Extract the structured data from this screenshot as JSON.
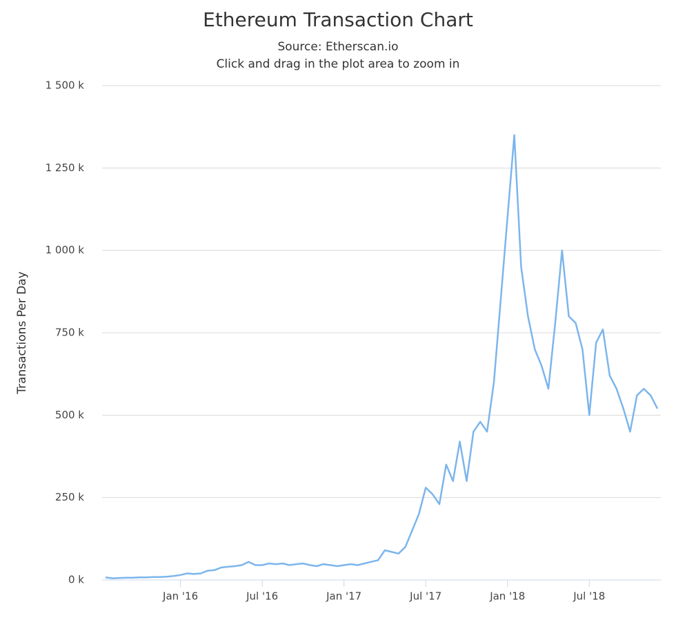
{
  "chart_data": {
    "type": "line",
    "title": "Ethereum Transaction Chart",
    "subtitle": "Source: Etherscan.io",
    "annotation": "Click and drag in the plot area to zoom in",
    "y_label": "Transactions Per Day",
    "categories": [
      null,
      null,
      null,
      null,
      null,
      null,
      null,
      null,
      null,
      null,
      null,
      "Jan '16",
      null,
      null,
      null,
      null,
      null,
      null,
      null,
      null,
      null,
      null,
      null,
      "Jul '16",
      null,
      null,
      null,
      null,
      null,
      null,
      null,
      null,
      null,
      null,
      null,
      "Jan '17",
      null,
      null,
      null,
      null,
      null,
      null,
      null,
      null,
      null,
      null,
      null,
      "Jul '17",
      null,
      null,
      null,
      null,
      null,
      null,
      null,
      null,
      null,
      null,
      null,
      "Jan '18",
      null,
      null,
      null,
      null,
      null,
      null,
      null,
      null,
      null,
      null,
      null,
      "Jul '18",
      null,
      null,
      null,
      null,
      null,
      null,
      null,
      null,
      null,
      null
    ],
    "series": [
      {
        "name": "Transactions Per Day",
        "color": "#7cb5ec",
        "values": [
          8000,
          5000,
          6000,
          7000,
          7000,
          8000,
          8000,
          9000,
          9000,
          10000,
          12000,
          15000,
          20000,
          18000,
          20000,
          28000,
          30000,
          38000,
          40000,
          42000,
          45000,
          55000,
          45000,
          45000,
          50000,
          48000,
          50000,
          45000,
          48000,
          50000,
          45000,
          42000,
          48000,
          45000,
          42000,
          45000,
          48000,
          45000,
          50000,
          55000,
          60000,
          90000,
          85000,
          80000,
          100000,
          150000,
          200000,
          280000,
          260000,
          230000,
          350000,
          300000,
          420000,
          300000,
          450000,
          480000,
          450000,
          600000,
          850000,
          1100000,
          1350000,
          950000,
          800000,
          700000,
          650000,
          580000,
          780000,
          1000000,
          800000,
          780000,
          700000,
          500000,
          720000,
          760000,
          620000,
          580000,
          520000,
          450000,
          560000,
          580000,
          560000,
          520000
        ]
      }
    ],
    "ylim": [
      0,
      1500000
    ],
    "yticks": [
      {
        "value": 0,
        "label": "0 k"
      },
      {
        "value": 250000,
        "label": "250 k"
      },
      {
        "value": 500000,
        "label": "500 k"
      },
      {
        "value": 750000,
        "label": "750 k"
      },
      {
        "value": 1000000,
        "label": "1 000 k"
      },
      {
        "value": 1250000,
        "label": "1 250 k"
      },
      {
        "value": 1500000,
        "label": "1 500 k"
      }
    ],
    "grid": true
  }
}
